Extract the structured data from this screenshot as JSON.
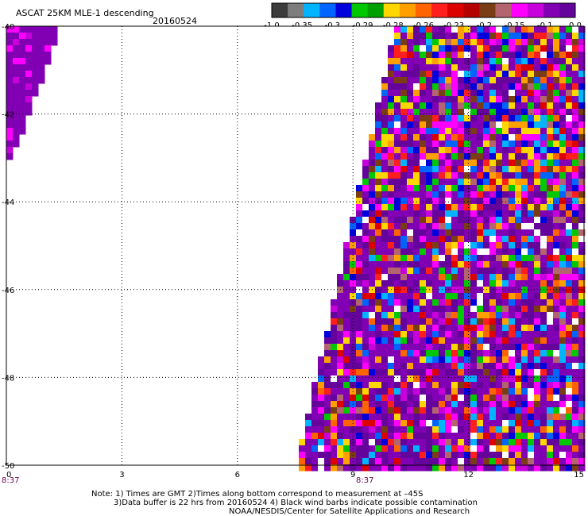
{
  "header": {
    "title": "ASCAT 25KM MLE-1 descending",
    "date": "20160524"
  },
  "colorbar": {
    "colors": [
      "#3c3c3c",
      "#7d7d7d",
      "#00b4ff",
      "#0064ff",
      "#0000dc",
      "#00c800",
      "#00a000",
      "#ffd700",
      "#ffa000",
      "#ff6400",
      "#ff1e1e",
      "#dc0000",
      "#b40000",
      "#7a3c14",
      "#b4646e",
      "#ff00ff",
      "#c800dc",
      "#8200b4",
      "#64049b"
    ],
    "labels": [
      "-1.0",
      "-0.35",
      "-0.3",
      "-0.29",
      "-0.28",
      "-0.26",
      "-0.23",
      "-0.2",
      "-0.15",
      "-0.1",
      "0.0"
    ]
  },
  "chart_data": {
    "type": "heatmap",
    "title": "ASCAT 25KM MLE-1 descending",
    "x_ticks": [
      "0",
      "3",
      "6",
      "9",
      "12",
      "15"
    ],
    "y_ticks": [
      "-40",
      "-42",
      "-44",
      "-46",
      "-48",
      "-50"
    ],
    "time_labels": [
      "8:37",
      "8:37"
    ],
    "xlim": [
      0,
      15
    ],
    "ylim": [
      -50,
      -40
    ],
    "grid": true
  },
  "notes": {
    "line1": "Note: 1) Times are GMT 2)Times along bottom correspond to measurement at –45S",
    "line2": "3)Data buffer is 22 hrs from 20160524 4) Black wind barbs indicate possible contamination",
    "line3": "NOAA/NESDIS/Center for Satellite Applications and Research"
  }
}
